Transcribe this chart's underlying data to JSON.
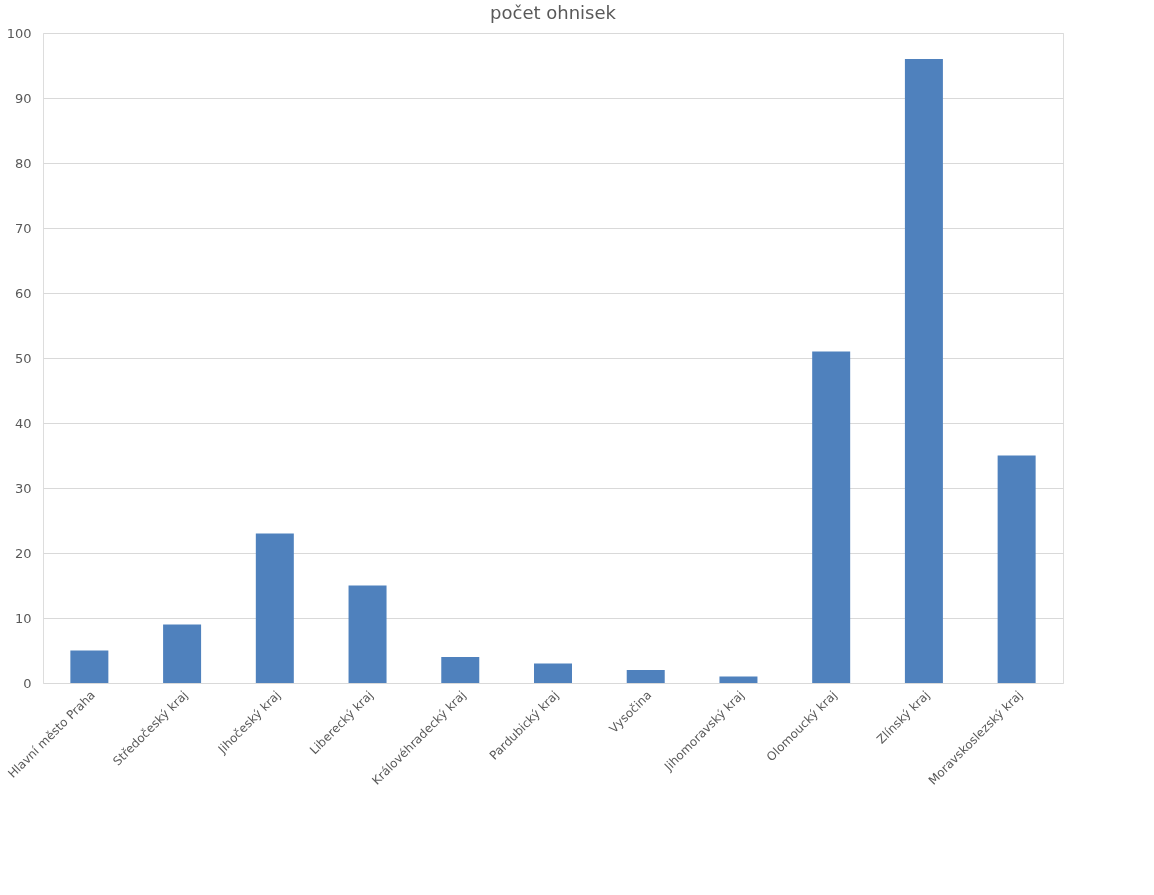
{
  "chart_data": {
    "type": "bar",
    "title": "počet ohnisek",
    "categories": [
      "Hlavní město Praha",
      "Středočeský kraj",
      "Jihočeský kraj",
      "Liberecký kraj",
      "Královéhradecký kraj",
      "Pardubický kraj",
      "Vysočina",
      "Jihomoravský kraj",
      "Olomoucký kraj",
      "Zlínský kraj",
      "Moravskoslezský kraj"
    ],
    "values": [
      5,
      9,
      23,
      15,
      4,
      3,
      2,
      1,
      51,
      96,
      35
    ],
    "color": "#4f81bd",
    "ylim": [
      0,
      100
    ],
    "yticks": [
      0,
      10,
      20,
      30,
      40,
      50,
      60,
      70,
      80,
      90,
      100
    ],
    "grid": "y"
  }
}
